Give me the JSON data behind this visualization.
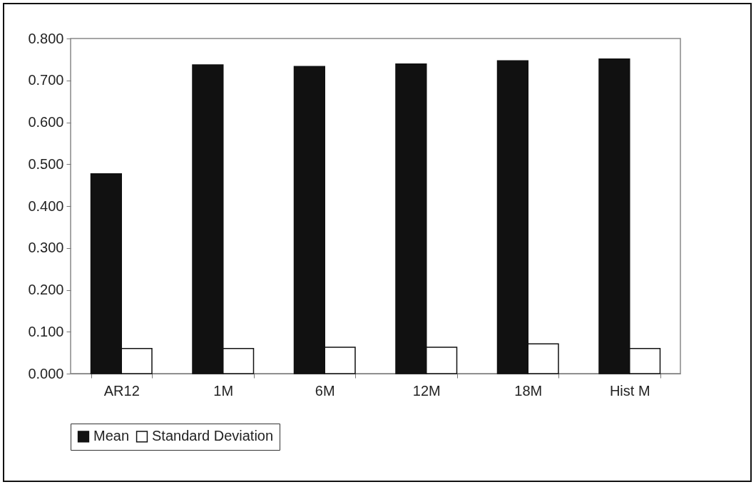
{
  "chart_data": {
    "type": "bar",
    "categories": [
      "AR12",
      "1M",
      "6M",
      "12M",
      "18M",
      "Hist M"
    ],
    "series": [
      {
        "name": "Mean",
        "color": "#111111",
        "values": [
          0.477,
          0.737,
          0.733,
          0.739,
          0.747,
          0.751
        ]
      },
      {
        "name": "Standard Deviation",
        "color": "#ffffff",
        "values": [
          0.06,
          0.06,
          0.063,
          0.063,
          0.071,
          0.06
        ]
      }
    ],
    "ylim": [
      0,
      0.8
    ],
    "yticks": [
      {
        "value": 0,
        "label": "0.000"
      },
      {
        "value": 0.1,
        "label": "0.100"
      },
      {
        "value": 0.2,
        "label": "0.200"
      },
      {
        "value": 0.3,
        "label": "0.300"
      },
      {
        "value": 0.4,
        "label": "0.400"
      },
      {
        "value": 0.5,
        "label": "0.500"
      },
      {
        "value": 0.6,
        "label": "0.600"
      },
      {
        "value": 0.7,
        "label": "0.700"
      },
      {
        "value": 0.8,
        "label": "0.800"
      }
    ],
    "grid": false,
    "legend": "bottom"
  }
}
